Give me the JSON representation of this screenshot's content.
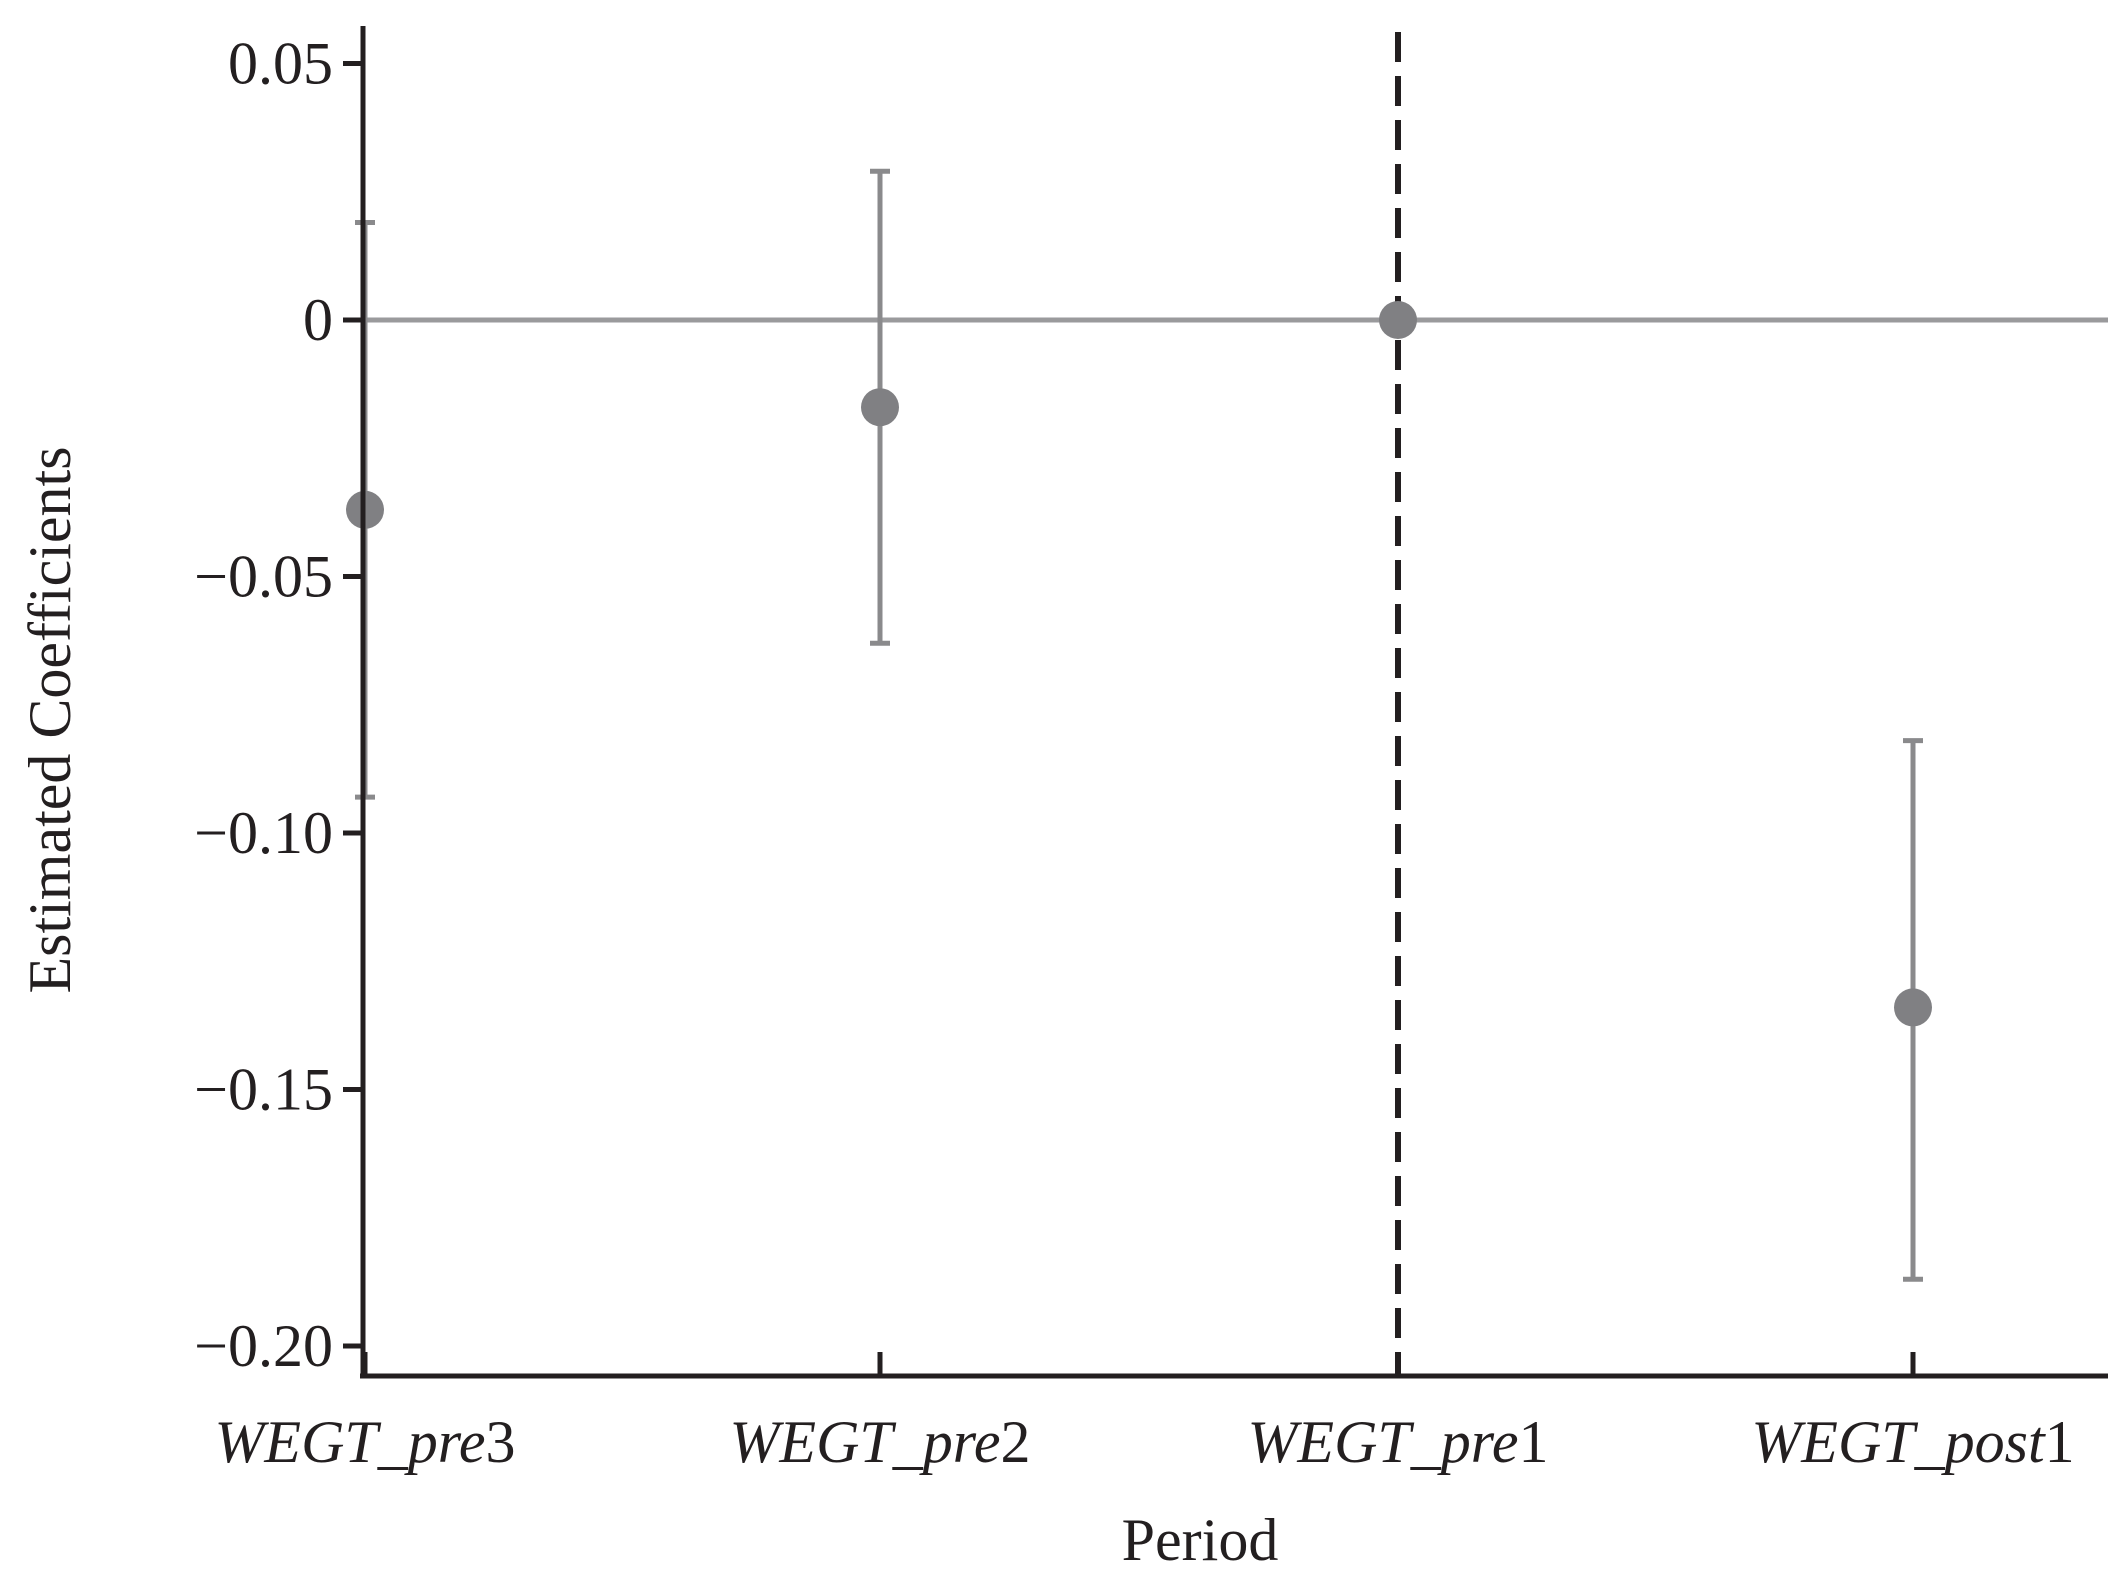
{
  "chart_data": {
    "type": "scatter",
    "subtype": "coefficient plot with error bars",
    "title": "",
    "xlabel": "Period",
    "ylabel": "Estimated Coefficients",
    "categories": [
      "WEGT_pre3",
      "WEGT_pre2",
      "WEGT_pre1",
      "WEGT_post1"
    ],
    "category_labels": [
      {
        "text": "WEGT_pre",
        "suffix": "3"
      },
      {
        "text": "WEGT_pre",
        "suffix": "2"
      },
      {
        "text": "WEGT_pre",
        "suffix": "1"
      },
      {
        "text": "WEGT_post",
        "suffix": "1"
      }
    ],
    "values": [
      -0.037,
      -0.017,
      0.0,
      -0.134
    ],
    "ci_lower": [
      -0.093,
      -0.063,
      0.0,
      -0.187
    ],
    "ci_upper": [
      0.019,
      0.029,
      0.0,
      -0.082
    ],
    "ylim": [
      -0.203,
      0.058
    ],
    "yticks": [
      0.05,
      0,
      -0.05,
      -0.1,
      -0.15,
      -0.2
    ],
    "ytick_labels": [
      "0.05",
      "0",
      "−0.05",
      "−0.10",
      "−0.15",
      "−0.20"
    ],
    "reference_hline": 0,
    "reference_vline_category": "WEGT_pre1",
    "grid": false,
    "legend": "none",
    "colors": {
      "marker": "#808083",
      "errorbar": "#8a8a8c",
      "zero_line": "#9a9a9c",
      "axis": "#231f20",
      "vline": "#231f20"
    }
  }
}
